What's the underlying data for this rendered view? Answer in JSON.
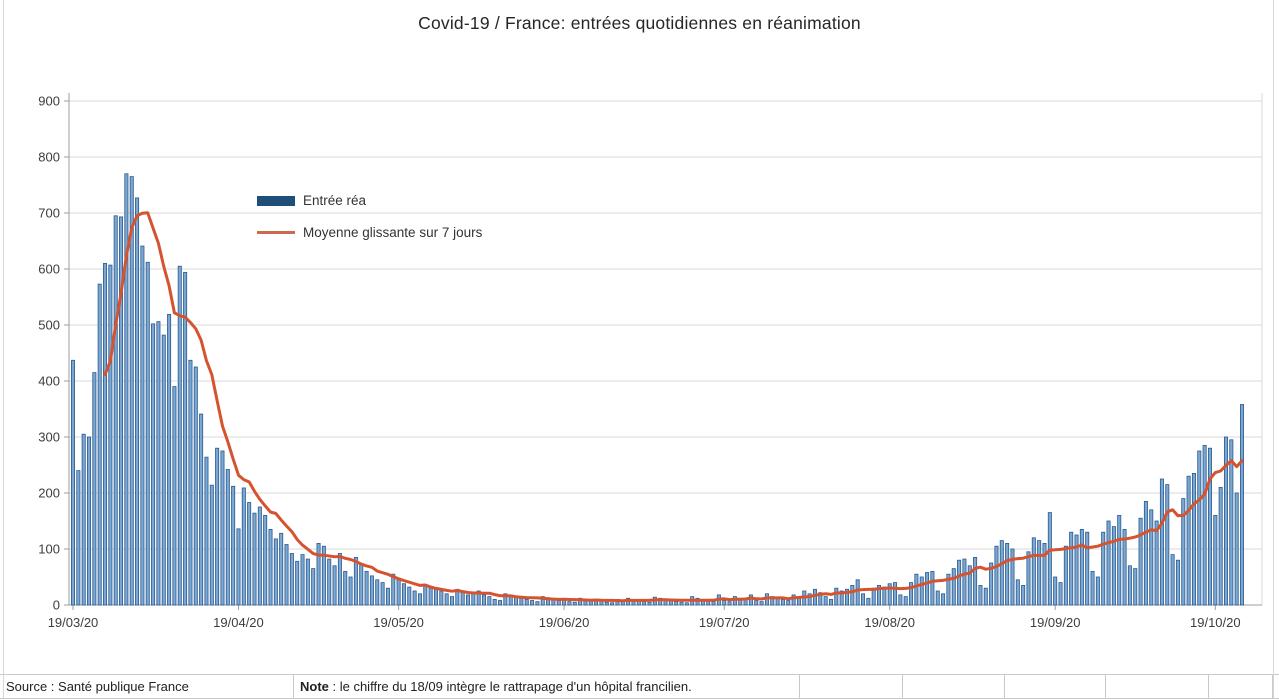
{
  "title": "Covid-19 / France: entrées quotidiennes en réanimation",
  "legend": {
    "bar_label": "Entrée réa",
    "line_label": "Moyenne glissante sur 7 jours"
  },
  "footer": {
    "source": "Source : Santé publique France",
    "note_label": "Note",
    "note_text": " : le chiffre du 18/09 intègre le rattrapage d'un hôpital francilien."
  },
  "chart_data": {
    "type": "bar",
    "title": "Covid-19 / France: entrées quotidiennes en réanimation",
    "xlabel": "",
    "ylabel": "",
    "ylim": [
      0,
      900
    ],
    "y_ticks": [
      0,
      100,
      200,
      300,
      400,
      500,
      600,
      700,
      800,
      900
    ],
    "grid": "horizontal",
    "legend_position": "inside-top-left",
    "start_date": "19/03/20",
    "end_date": "24/10/20",
    "x_tick_labels": [
      "19/03/20",
      "19/04/20",
      "19/05/20",
      "19/06/20",
      "19/07/20",
      "19/08/20",
      "19/09/20",
      "19/10/20"
    ],
    "x_tick_day_indexes": [
      0,
      31,
      61,
      92,
      122,
      153,
      184,
      214
    ],
    "series": [
      {
        "name": "Entrée réa",
        "type": "bar",
        "values": [
          437,
          240,
          305,
          300,
          415,
          573,
          610,
          607,
          695,
          693,
          770,
          765,
          727,
          641,
          612,
          502,
          506,
          482,
          519,
          390,
          605,
          594,
          437,
          425,
          341,
          264,
          214,
          280,
          275,
          242,
          212,
          136,
          209,
          183,
          164,
          175,
          160,
          135,
          118,
          128,
          108,
          92,
          78,
          90,
          82,
          65,
          110,
          105,
          82,
          70,
          92,
          60,
          50,
          85,
          72,
          60,
          52,
          45,
          40,
          30,
          55,
          45,
          38,
          32,
          25,
          20,
          35,
          30,
          28,
          25,
          20,
          15,
          28,
          22,
          18,
          22,
          25,
          18,
          15,
          10,
          8,
          20,
          18,
          15,
          12,
          10,
          8,
          6,
          15,
          13,
          10,
          8,
          11,
          6,
          5,
          12,
          10,
          8,
          10,
          8,
          5,
          4,
          10,
          8,
          12,
          10,
          8,
          6,
          5,
          14,
          12,
          10,
          8,
          6,
          5,
          4,
          15,
          12,
          10,
          8,
          6,
          18,
          8,
          6,
          15,
          12,
          10,
          18,
          8,
          6,
          20,
          15,
          12,
          10,
          8,
          18,
          12,
          25,
          20,
          28,
          22,
          15,
          10,
          30,
          25,
          28,
          35,
          45,
          20,
          12,
          30,
          35,
          32,
          38,
          40,
          18,
          15,
          40,
          55,
          50,
          58,
          60,
          25,
          20,
          55,
          65,
          80,
          82,
          70,
          85,
          35,
          30,
          75,
          105,
          115,
          110,
          100,
          45,
          35,
          95,
          120,
          115,
          110,
          165,
          50,
          40,
          105,
          130,
          125,
          135,
          130,
          60,
          50,
          130,
          150,
          140,
          160,
          135,
          70,
          65,
          155,
          185,
          170,
          150,
          225,
          215,
          90,
          80,
          190,
          230,
          235,
          275,
          285,
          280,
          160,
          210,
          300,
          295,
          200,
          358
        ]
      },
      {
        "name": "Moyenne glissante sur 7 jours",
        "type": "line",
        "derived": "7-day moving average of Entrée réa"
      }
    ],
    "colors": {
      "bar_fill": "#7BA7D0",
      "bar_stroke": "#2A5A92",
      "legend_bar": "#1F4E79",
      "line": "#D5532F",
      "legend_line": "#CC6A4C",
      "grid": "#DADADA",
      "axis": "#9E9E9E",
      "tick_text": "#3D3D3D"
    }
  }
}
